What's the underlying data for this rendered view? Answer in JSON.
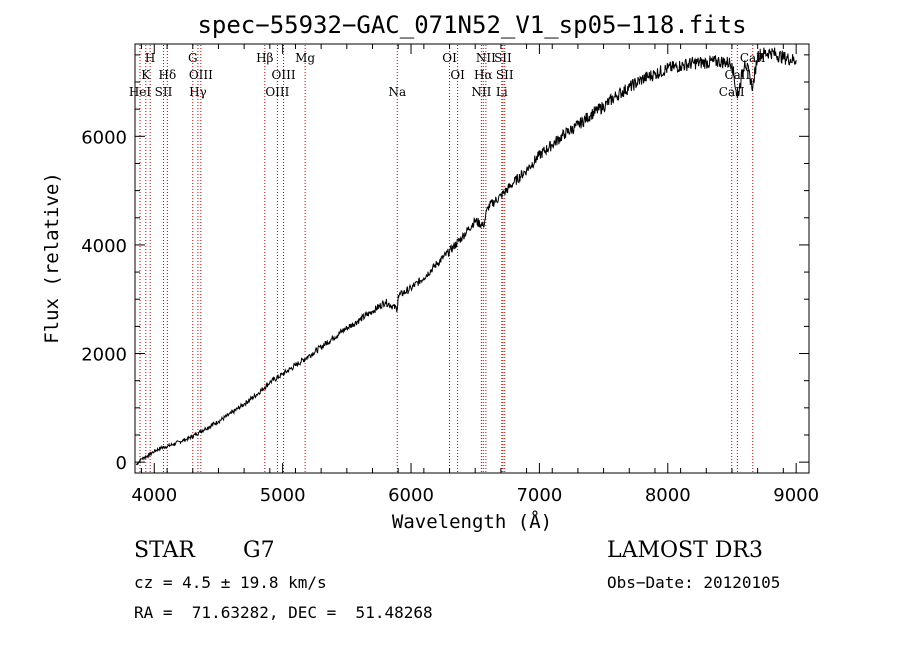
{
  "chart_data": {
    "type": "line",
    "title": "spec−55932−GAC_071N52_V1_sp05−118.fits",
    "xlabel": "Wavelength (Å)",
    "ylabel": "Flux (relative)",
    "xlim": [
      3850,
      9100
    ],
    "ylim": [
      -200,
      7700
    ],
    "x_ticks": [
      4000,
      5000,
      6000,
      7000,
      8000,
      9000
    ],
    "x_tick_labels": [
      "4000",
      "5000",
      "6000",
      "7000",
      "8000",
      "9000"
    ],
    "y_ticks": [
      0,
      2000,
      4000,
      6000
    ],
    "y_tick_labels": [
      "0",
      "2000",
      "4000",
      "6000"
    ],
    "grid": false,
    "series": [
      {
        "name": "spectrum",
        "x": [
          3860,
          3900,
          3950,
          4000,
          4050,
          4100,
          4150,
          4200,
          4250,
          4300,
          4350,
          4400,
          4500,
          4600,
          4700,
          4800,
          4861,
          4900,
          5000,
          5100,
          5200,
          5300,
          5400,
          5500,
          5600,
          5700,
          5800,
          5893,
          5900,
          6000,
          6100,
          6200,
          6300,
          6400,
          6500,
          6563,
          6600,
          6700,
          6800,
          6900,
          7000,
          7100,
          7200,
          7300,
          7400,
          7500,
          7600,
          7700,
          7800,
          7900,
          8000,
          8100,
          8200,
          8300,
          8400,
          8500,
          8542,
          8600,
          8662,
          8700,
          8800,
          8900,
          9000
        ],
        "y": [
          -50,
          60,
          120,
          200,
          260,
          290,
          330,
          380,
          420,
          480,
          550,
          620,
          750,
          900,
          1070,
          1250,
          1380,
          1470,
          1620,
          1780,
          1950,
          2120,
          2300,
          2470,
          2620,
          2780,
          2950,
          2820,
          3060,
          3200,
          3400,
          3650,
          3880,
          4150,
          4450,
          4350,
          4700,
          4900,
          5150,
          5380,
          5650,
          5850,
          6050,
          6200,
          6400,
          6550,
          6750,
          6900,
          7050,
          7150,
          7250,
          7300,
          7350,
          7360,
          7380,
          7350,
          6700,
          7400,
          6900,
          7500,
          7550,
          7450,
          7400
        ]
      }
    ],
    "annotation_lines": [
      {
        "wavelength": 3889,
        "label": "HeI",
        "row": 2
      },
      {
        "wavelength": 3934,
        "label": "K",
        "row": 1
      },
      {
        "wavelength": 3968,
        "label": "H",
        "row": 0
      },
      {
        "wavelength": 4072,
        "label": "SII",
        "row": 2
      },
      {
        "wavelength": 4102,
        "label": "Hδ",
        "row": 1
      },
      {
        "wavelength": 4300,
        "label": "G",
        "row": 0
      },
      {
        "wavelength": 4340,
        "label": "Hγ",
        "row": 2
      },
      {
        "wavelength": 4363,
        "label": "OIII",
        "row": 1
      },
      {
        "wavelength": 4861,
        "label": "Hβ",
        "row": 0
      },
      {
        "wavelength": 4959,
        "label": "OIII",
        "row": 2
      },
      {
        "wavelength": 5007,
        "label": "OIII",
        "row": 1
      },
      {
        "wavelength": 5175,
        "label": "Mg",
        "row": 0
      },
      {
        "wavelength": 5893,
        "label": "Na",
        "row": 2
      },
      {
        "wavelength": 6300,
        "label": "OI",
        "row": 0
      },
      {
        "wavelength": 6363,
        "label": "OI",
        "row": 1
      },
      {
        "wavelength": 6548,
        "label": "NII",
        "row": 2
      },
      {
        "wavelength": 6563,
        "label": "Hα",
        "row": 1
      },
      {
        "wavelength": 6583,
        "label": "NII",
        "row": 0
      },
      {
        "wavelength": 6707,
        "label": "Li",
        "row": 2
      },
      {
        "wavelength": 6716,
        "label": "SII",
        "row": 0
      },
      {
        "wavelength": 6730,
        "label": "SII",
        "row": 1
      },
      {
        "wavelength": 8498,
        "label": "CaII",
        "row": 2
      },
      {
        "wavelength": 8542,
        "label": "CaII",
        "row": 1
      },
      {
        "wavelength": 8662,
        "label": "CaII",
        "row": 0
      }
    ]
  },
  "info": {
    "object_class": "STAR",
    "subclass": "G7",
    "redshift_text": "cz = 4.5 ± 19.8 km/s",
    "coords_text": "RA =  71.63282, DEC =  51.48268",
    "survey": "LAMOST DR3",
    "obs_date_text": "Obs−Date: 20120105"
  },
  "colors": {
    "line_marker": "#c00000",
    "spectrum": "#000000"
  }
}
